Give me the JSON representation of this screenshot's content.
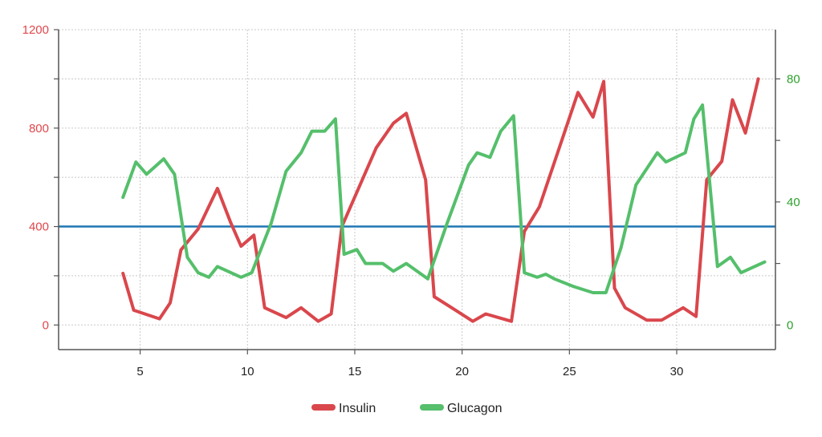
{
  "chart_data": {
    "type": "line",
    "title": "",
    "xlabel": "",
    "ylabel_left": "",
    "ylabel_right": "",
    "xlim": [
      1.2,
      34.6
    ],
    "x_ticks": [
      5,
      10,
      15,
      20,
      25,
      30
    ],
    "y_left": {
      "lim": [
        -100,
        1200
      ],
      "ticks": [
        0,
        200,
        400,
        600,
        800,
        1000,
        1200
      ],
      "tick_labels": [
        "0",
        "",
        "400",
        "",
        "800",
        "",
        "1200"
      ],
      "color": "#e0474c"
    },
    "y_right": {
      "lim": [
        -8,
        96
      ],
      "ticks": [
        0,
        20,
        40,
        60,
        80
      ],
      "tick_labels": [
        "0",
        "",
        "40",
        "",
        "80"
      ],
      "color": "#2ca02c"
    },
    "reference_line": {
      "axis": "left",
      "value": 400,
      "color": "#1f77b4"
    },
    "grid": true,
    "legend_position": "bottom-center",
    "series": [
      {
        "name": "Insulin",
        "axis": "left",
        "color": "#d9474c",
        "x": [
          4.2,
          4.7,
          5.9,
          6.4,
          6.9,
          7.7,
          8.6,
          9.2,
          9.7,
          10.3,
          10.8,
          11.8,
          12.5,
          13.3,
          13.9,
          14.4,
          15.2,
          16.0,
          16.8,
          17.4,
          18.3,
          18.7,
          19.7,
          20.5,
          21.1,
          22.3,
          22.9,
          23.6,
          25.4,
          26.1,
          26.6,
          27.1,
          27.6,
          28.6,
          29.3,
          30.3,
          30.9,
          31.4,
          32.1,
          32.6,
          33.2,
          33.8
        ],
        "y": [
          210,
          60,
          25,
          90,
          305,
          390,
          555,
          420,
          320,
          365,
          70,
          30,
          70,
          15,
          45,
          400,
          560,
          720,
          820,
          860,
          590,
          115,
          60,
          15,
          45,
          15,
          380,
          480,
          945,
          845,
          990,
          150,
          70,
          20,
          20,
          70,
          35,
          590,
          665,
          915,
          780,
          1000
        ]
      },
      {
        "name": "Glucagon",
        "axis": "right",
        "color": "#55bf6b",
        "x": [
          4.2,
          4.8,
          5.3,
          6.1,
          6.6,
          7.2,
          7.7,
          8.2,
          8.6,
          9.7,
          10.2,
          11.1,
          11.8,
          12.5,
          13.0,
          13.6,
          14.1,
          14.5,
          15.1,
          15.5,
          16.3,
          16.8,
          17.4,
          18.4,
          19.3,
          20.3,
          20.7,
          21.3,
          21.8,
          22.4,
          22.9,
          23.5,
          23.9,
          24.3,
          25.2,
          26.1,
          26.7,
          27.4,
          28.1,
          29.1,
          29.5,
          30.4,
          30.8,
          31.2,
          31.9,
          32.5,
          33.0,
          34.1
        ],
        "y": [
          41.5,
          53,
          49,
          54,
          49,
          22,
          17,
          15.5,
          19,
          15.5,
          17,
          33,
          50,
          56,
          63,
          63,
          67,
          23,
          24.5,
          20,
          20,
          17.5,
          20,
          15,
          33,
          52,
          56,
          54.5,
          63,
          68,
          17,
          15.5,
          16.5,
          15,
          12.5,
          10.5,
          10.5,
          25,
          45.5,
          56,
          53,
          56,
          67,
          71.5,
          19,
          22,
          17,
          20.5
        ]
      }
    ]
  }
}
